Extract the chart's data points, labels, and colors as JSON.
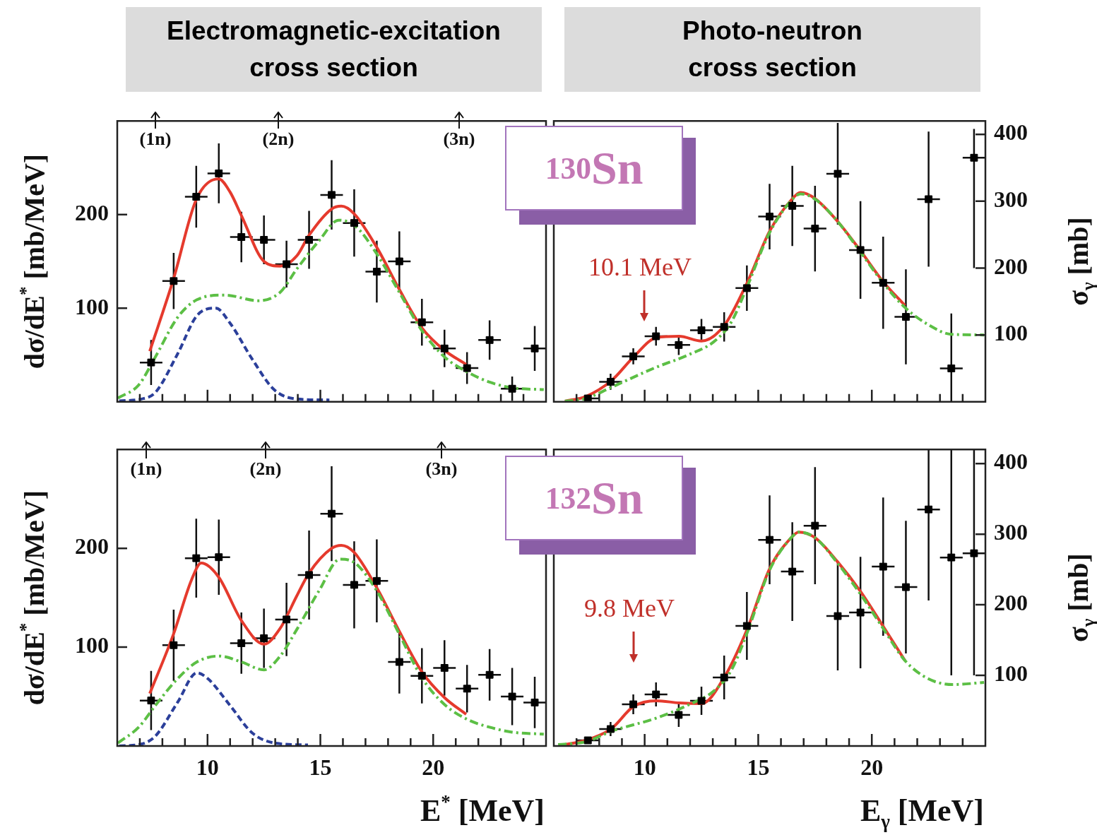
{
  "chart_data": [
    {
      "type": "scatter",
      "title": "Electromagnetic-excitation cross section",
      "ylabel": "dσ/dE$^{*}$ [mb/MeV]",
      "xlim": [
        6,
        25
      ],
      "ylim": [
        0,
        300
      ],
      "yticks": [
        100,
        200
      ],
      "tick_labels": "y",
      "xticks": [
        {
          "value": 7,
          "label": null
        },
        {
          "value": 8,
          "label": null
        },
        {
          "value": 9,
          "label": null
        },
        10,
        {
          "value": 11,
          "label": null
        },
        {
          "value": 12,
          "label": null
        },
        {
          "value": 13,
          "label": null
        },
        {
          "value": 14,
          "label": null
        },
        15,
        {
          "value": 16,
          "label": null
        },
        {
          "value": 17,
          "label": null
        },
        {
          "value": 18,
          "label": null
        },
        {
          "value": 19,
          "label": null
        },
        20,
        {
          "value": 21,
          "label": null
        },
        {
          "value": 22,
          "label": null
        },
        {
          "value": 23,
          "label": null
        },
        {
          "value": 24,
          "label": null
        }
      ],
      "annotations": [
        "(1n)",
        "(2n)",
        "(3n)"
      ],
      "series": [
        {
          "type": "line",
          "color": "#2b3f9a",
          "line_style": "dashed",
          "marker": "none",
          "x": [
            6.09,
            7.07,
            7.69,
            8.67,
            9.53,
            10.37,
            11.0,
            11.97,
            12.95,
            13.96,
            15.4
          ],
          "values": [
            1,
            3,
            10,
            51,
            92,
            100,
            84,
            46,
            13,
            3,
            2
          ]
        },
        {
          "type": "line",
          "color": "#5cbf45",
          "line_style": "dashdot",
          "marker": "none",
          "x": [
            6.03,
            6.95,
            7.69,
            8.67,
            9.53,
            10.76,
            12.24,
            13.22,
            13.96,
            14.94,
            15.81,
            16.54,
            17.5,
            18.5,
            19.5,
            20.5,
            21.5,
            22.5,
            23.5,
            24.9
          ],
          "values": [
            4,
            18,
            48,
            90,
            109,
            114,
            108,
            117,
            142,
            172,
            194,
            188,
            158,
            117,
            76,
            48,
            32,
            21,
            15,
            13
          ]
        },
        {
          "type": "line",
          "color": "#e53a2d",
          "line_style": "solid",
          "marker": "none",
          "x": [
            7.44,
            8.49,
            9.5,
            10.49,
            11.0,
            11.5,
            12.5,
            13.22,
            13.96,
            14.5,
            15.5,
            15.93,
            16.49,
            17.5,
            18.5,
            19.5,
            20.5,
            21.46
          ],
          "values": [
            54,
            131,
            216,
            238,
            224,
            199,
            150,
            145,
            156,
            178,
            206,
            209,
            201,
            165,
            120,
            79,
            55,
            40
          ]
        },
        {
          "type": "scatter",
          "color": "#000000",
          "marker": "square",
          "x": [
            7.5,
            8.5,
            9.5,
            10.5,
            11.5,
            12.5,
            13.5,
            14.5,
            15.5,
            16.5,
            17.5,
            18.5,
            19.5,
            20.5,
            21.5,
            22.5,
            23.5,
            24.5
          ],
          "values": [
            42,
            129,
            219,
            244,
            176,
            173,
            147,
            173,
            221,
            191,
            139,
            150,
            85,
            57,
            36,
            66,
            14,
            57
          ],
          "errors": [
            24,
            30,
            33,
            32,
            27,
            26,
            25,
            31,
            37,
            36,
            33,
            32,
            25,
            20,
            17,
            21,
            13,
            24
          ],
          "xerrors": [
            0.5,
            0.5,
            0.5,
            0.5,
            0.5,
            0.5,
            0.5,
            0.5,
            0.5,
            0.5,
            0.5,
            0.5,
            0.5,
            0.5,
            0.5,
            0.5,
            0.5,
            0.5
          ]
        }
      ]
    },
    {
      "type": "scatter",
      "title": "Photo-neutron cross section",
      "ylabel": "σ$_{γ}$ [mb]",
      "xlim": [
        6,
        25
      ],
      "ylim": [
        0,
        420
      ],
      "yticks": [
        100,
        200,
        300,
        400
      ],
      "tick_labels": "y",
      "xticks": [
        {
          "value": 7,
          "label": null
        },
        {
          "value": 8,
          "label": null
        },
        {
          "value": 9,
          "label": null
        },
        10,
        {
          "value": 11,
          "label": null
        },
        {
          "value": 12,
          "label": null
        },
        {
          "value": 13,
          "label": null
        },
        {
          "value": 14,
          "label": null
        },
        15,
        {
          "value": 16,
          "label": null
        },
        {
          "value": 17,
          "label": null
        },
        {
          "value": 18,
          "label": null
        },
        {
          "value": 19,
          "label": null
        },
        20,
        {
          "value": 21,
          "label": null
        },
        {
          "value": 22,
          "label": null
        },
        {
          "value": 23,
          "label": null
        },
        {
          "value": 24,
          "label": null
        }
      ],
      "annotations": [
        "$^{130}$Sn",
        "10.1 MeV"
      ],
      "series": [
        {
          "type": "line",
          "color": "#e53a2d",
          "line_style": "solid",
          "marker": "none",
          "x": [
            6.49,
            7.41,
            8.55,
            9.51,
            10.52,
            11.52,
            12.5,
            13.5,
            14.51,
            15.5,
            16.51,
            16.86,
            17.5,
            18.49,
            19.5,
            20.49,
            21.46
          ],
          "values": [
            1,
            8,
            32,
            67,
            96,
            98,
            91,
            114,
            178,
            255,
            304,
            313,
            304,
            270,
            226,
            180,
            144
          ]
        },
        {
          "type": "line",
          "color": "#5cbf45",
          "line_style": "dashdot",
          "marker": "none",
          "x": [
            6.49,
            7.41,
            8.55,
            10.46,
            11.98,
            13.05,
            13.81,
            14.51,
            15.5,
            16.51,
            16.86,
            17.5,
            18.49,
            19.5,
            20.49,
            21.46,
            22.5,
            23.49,
            24.94
          ],
          "values": [
            1,
            5,
            22,
            51,
            71,
            90,
            119,
            172,
            253,
            303,
            311,
            303,
            270,
            224,
            178,
            141,
            115,
            101,
            100
          ]
        },
        {
          "type": "scatter",
          "color": "#000000",
          "marker": "square",
          "x": [
            7.5,
            8.5,
            9.5,
            10.5,
            11.5,
            12.5,
            13.5,
            14.5,
            15.5,
            16.5,
            17.5,
            18.5,
            19.5,
            20.5,
            21.5,
            22.5,
            23.5,
            24.5
          ],
          "values": [
            5,
            30,
            68,
            98,
            85,
            107,
            112,
            170,
            277,
            293,
            259,
            341,
            227,
            178,
            127,
            303,
            50,
            365
          ],
          "errors": [
            null,
            12,
            12,
            14,
            15,
            17,
            22,
            34,
            49,
            60,
            64,
            76,
            73,
            69,
            71,
            101,
            [
              0,
              132
            ],
            [
              200,
              408
            ]
          ],
          "xerrors": [
            0.5,
            0.5,
            0.5,
            0.5,
            0.5,
            0.5,
            0.5,
            0.5,
            0.5,
            0.5,
            0.5,
            0.5,
            0.5,
            0.5,
            0.5,
            0.5,
            0.5,
            0.5
          ]
        }
      ]
    },
    {
      "type": "scatter",
      "ylabel": "dσ/dE$^{*}$ [mb/MeV]",
      "xlabel": "E$^{*}$ [MeV]",
      "xlim": [
        6,
        25
      ],
      "ylim": [
        0,
        300
      ],
      "yticks": [
        100,
        200
      ],
      "xticks": [
        {
          "value": 7,
          "label": null
        },
        {
          "value": 8,
          "label": null
        },
        {
          "value": 9,
          "label": null
        },
        10,
        {
          "value": 11,
          "label": null
        },
        {
          "value": 12,
          "label": null
        },
        {
          "value": 13,
          "label": null
        },
        {
          "value": 14,
          "label": null
        },
        15,
        {
          "value": 16,
          "label": null
        },
        {
          "value": 17,
          "label": null
        },
        {
          "value": 18,
          "label": null
        },
        {
          "value": 19,
          "label": null
        },
        20,
        {
          "value": 21,
          "label": null
        },
        {
          "value": 22,
          "label": null
        },
        {
          "value": 23,
          "label": null
        },
        {
          "value": 24,
          "label": null
        }
      ],
      "annotations": [
        "(1n)",
        "(2n)",
        "(3n)"
      ],
      "series": [
        {
          "type": "line",
          "color": "#2b3f9a",
          "line_style": "dashed",
          "marker": "none",
          "x": [
            6.09,
            7.07,
            7.69,
            8.67,
            9.53,
            10.02,
            11.0,
            11.99,
            12.98,
            14.45
          ],
          "values": [
            0,
            2,
            10,
            44,
            74,
            68,
            41,
            13,
            3,
            1
          ]
        },
        {
          "type": "line",
          "color": "#5cbf45",
          "line_style": "dashdot",
          "marker": "none",
          "x": [
            6.03,
            6.95,
            7.69,
            8.67,
            9.53,
            10.52,
            11.5,
            12.5,
            13.22,
            13.96,
            14.94,
            15.87,
            16.54,
            17.5,
            18.5,
            19.5,
            20.5,
            21.5,
            22.5,
            23.5,
            24.9
          ],
          "values": [
            3,
            19,
            41,
            68,
            85,
            91,
            85,
            77,
            91,
            118,
            157,
            189,
            185,
            157,
            113,
            69,
            42,
            27,
            19,
            14,
            12
          ]
        },
        {
          "type": "line",
          "color": "#e53a2d",
          "line_style": "solid",
          "marker": "none",
          "x": [
            7.44,
            8.49,
            9.29,
            9.72,
            10.49,
            11.5,
            12.5,
            13.22,
            13.96,
            14.5,
            15.5,
            15.93,
            16.49,
            17.5,
            18.5,
            19.5,
            20.5,
            21.46
          ],
          "values": [
            53,
            113,
            168,
            185,
            171,
            127,
            103,
            119,
            152,
            175,
            200,
            203,
            196,
            160,
            116,
            75,
            49,
            32
          ]
        },
        {
          "type": "scatter",
          "color": "#000000",
          "marker": "square",
          "x": [
            7.5,
            8.5,
            9.5,
            10.5,
            11.5,
            12.5,
            13.5,
            14.5,
            15.5,
            16.5,
            17.5,
            18.5,
            19.5,
            20.5,
            21.5,
            22.5,
            23.5,
            24.5
          ],
          "values": [
            46,
            102,
            190,
            191,
            104,
            109,
            128,
            173,
            235,
            163,
            167,
            85,
            71,
            79,
            58,
            72,
            50,
            44
          ],
          "errors": [
            30,
            36,
            40,
            38,
            31,
            30,
            37,
            45,
            48,
            44,
            42,
            32,
            28,
            28,
            24,
            26,
            29,
            26
          ],
          "xerrors": [
            0.5,
            0.5,
            0.5,
            0.5,
            0.5,
            0.5,
            0.5,
            0.5,
            0.5,
            0.5,
            0.5,
            0.5,
            0.5,
            0.5,
            0.5,
            0.5,
            0.5,
            0.5
          ]
        }
      ]
    },
    {
      "type": "scatter",
      "ylabel": "σ$_{γ}$ [mb]",
      "xlabel": "E$_{γ}$ [MeV]",
      "xlim": [
        6,
        25
      ],
      "ylim": [
        0,
        420
      ],
      "yticks": [
        100,
        200,
        300,
        400
      ],
      "xticks": [
        {
          "value": 7,
          "label": null
        },
        {
          "value": 8,
          "label": null
        },
        {
          "value": 9,
          "label": null
        },
        10,
        {
          "value": 11,
          "label": null
        },
        {
          "value": 12,
          "label": null
        },
        {
          "value": 13,
          "label": null
        },
        {
          "value": 14,
          "label": null
        },
        15,
        {
          "value": 16,
          "label": null
        },
        {
          "value": 17,
          "label": null
        },
        {
          "value": 18,
          "label": null
        },
        {
          "value": 19,
          "label": null
        },
        20,
        {
          "value": 21,
          "label": null
        },
        {
          "value": 22,
          "label": null
        },
        {
          "value": 23,
          "label": null
        },
        {
          "value": 24,
          "label": null
        }
      ],
      "annotations": [
        "$^{132}$Sn",
        "9.8 MeV"
      ],
      "series": [
        {
          "type": "line",
          "color": "#e53a2d",
          "line_style": "solid",
          "marker": "none",
          "x": [
            6.49,
            7.41,
            8.55,
            9.51,
            10.52,
            11.52,
            12.5,
            13.5,
            14.51,
            15.5,
            16.51,
            16.78,
            17.5,
            18.49,
            19.5,
            20.49,
            21.46
          ],
          "values": [
            2,
            8,
            25,
            56,
            64,
            61,
            60,
            97,
            165,
            251,
            297,
            303,
            295,
            261,
            219,
            170,
            121
          ]
        },
        {
          "type": "line",
          "color": "#5cbf45",
          "line_style": "dashdot",
          "marker": "none",
          "x": [
            6.19,
            7.41,
            8.55,
            10.46,
            11.98,
            13.05,
            13.81,
            14.51,
            15.5,
            16.51,
            16.78,
            17.5,
            18.49,
            19.5,
            20.49,
            21.46,
            22.5,
            23.57,
            24.94
          ],
          "values": [
            2,
            6,
            21,
            39,
            59,
            78,
            107,
            160,
            249,
            297,
            303,
            295,
            259,
            215,
            167,
            121,
            95,
            87,
            90
          ]
        },
        {
          "type": "scatter",
          "color": "#000000",
          "marker": "square",
          "x": [
            7.5,
            8.5,
            9.5,
            10.5,
            11.5,
            12.5,
            13.5,
            14.5,
            15.5,
            16.5,
            17.5,
            18.5,
            19.5,
            20.5,
            21.5,
            22.5,
            23.5,
            24.5
          ],
          "values": [
            8,
            24,
            59,
            73,
            44,
            64,
            97,
            170,
            292,
            247,
            312,
            184,
            189,
            254,
            225,
            335,
            267,
            273
          ],
          "errors": [
            null,
            10,
            14,
            17,
            17,
            20,
            31,
            48,
            63,
            70,
            83,
            77,
            79,
            98,
            94,
            [
              206,
              420
            ],
            [
              100,
              420
            ],
            [
              100,
              420
            ]
          ],
          "xerrors": [
            0.5,
            0.5,
            0.5,
            0.5,
            0.5,
            0.5,
            0.5,
            0.5,
            0.5,
            0.5,
            0.5,
            0.5,
            0.5,
            0.5,
            0.5,
            0.5,
            0.5,
            0.5
          ]
        }
      ]
    }
  ]
}
